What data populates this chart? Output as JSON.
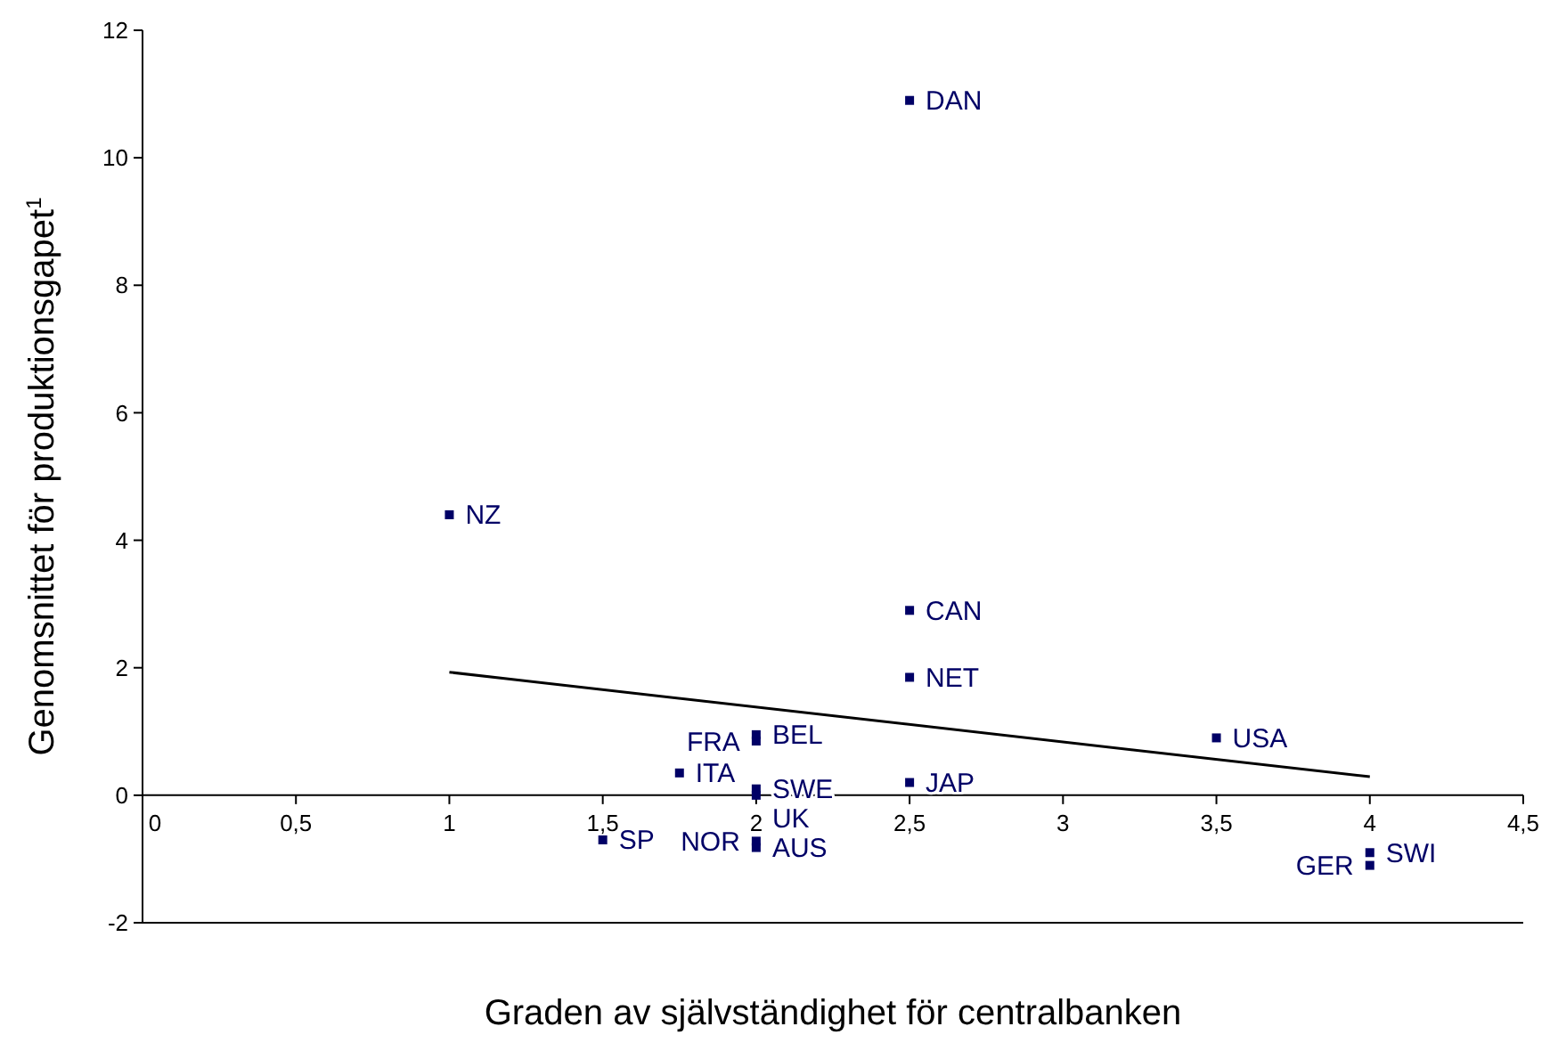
{
  "chart_data": {
    "type": "scatter",
    "xlabel": "Graden av självständighet för centralbanken",
    "ylabel": "Genomsnittet för produktionsgapet$^{1}$",
    "xlim": [
      0,
      4.5
    ],
    "ylim": [
      -2,
      12
    ],
    "xticks": [
      0,
      {
        "value": 0.5,
        "label": "0,5"
      },
      1,
      {
        "value": 1.5,
        "label": "1,5"
      },
      2,
      {
        "value": 2.5,
        "label": "2,5"
      },
      3,
      {
        "value": 3.5,
        "label": "3,5"
      },
      4,
      {
        "value": 4.5,
        "label": "4,5"
      }
    ],
    "yticks": [
      -2,
      0,
      2,
      4,
      6,
      8,
      10,
      12
    ],
    "marker": "square",
    "grid": false,
    "series": [
      {
        "name": "DAN",
        "color": "#000066",
        "x": [
          2.5
        ],
        "values": [
          10.9
        ]
      },
      {
        "name": "NZ",
        "color": "#000066",
        "x": [
          1
        ],
        "values": [
          4.4
        ]
      },
      {
        "name": "CAN",
        "color": "#000066",
        "x": [
          2.5
        ],
        "values": [
          2.9
        ]
      },
      {
        "name": "NET",
        "color": "#000066",
        "x": [
          2.5
        ],
        "values": [
          1.85
        ]
      },
      {
        "name": "BEL",
        "color": "#000066",
        "x": [
          2
        ],
        "values": [
          0.95
        ]
      },
      {
        "name": "FRA",
        "color": "#000066",
        "x": [
          2
        ],
        "values": [
          0.85
        ]
      },
      {
        "name": "USA",
        "color": "#000066",
        "x": [
          3.5
        ],
        "values": [
          0.9
        ]
      },
      {
        "name": "ITA",
        "color": "#000066",
        "x": [
          1.75
        ],
        "values": [
          0.35
        ]
      },
      {
        "name": "JAP",
        "color": "#000066",
        "x": [
          2.5
        ],
        "values": [
          0.2
        ]
      },
      {
        "name": "SWE",
        "color": "#000066",
        "x": [
          2
        ],
        "values": [
          0.1
        ]
      },
      {
        "name": "UK",
        "color": "#000066",
        "x": [
          2
        ],
        "values": [
          0
        ]
      },
      {
        "name": "SP",
        "color": "#000066",
        "x": [
          1.5
        ],
        "values": [
          -0.7
        ]
      },
      {
        "name": "NOR",
        "color": "#000066",
        "x": [
          2
        ],
        "values": [
          -0.72
        ]
      },
      {
        "name": "AUS",
        "color": "#000066",
        "x": [
          2
        ],
        "values": [
          -0.82
        ]
      },
      {
        "name": "SWI",
        "color": "#000066",
        "x": [
          4
        ],
        "values": [
          -0.9
        ]
      },
      {
        "name": "GER",
        "color": "#000066",
        "x": [
          4
        ],
        "values": [
          -1.1
        ]
      },
      {
        "type": "line",
        "color": "#000000",
        "x": [
          1,
          4
        ],
        "values": [
          1.93,
          0.29
        ],
        "marker": "none",
        "line_style": "solid"
      }
    ]
  }
}
